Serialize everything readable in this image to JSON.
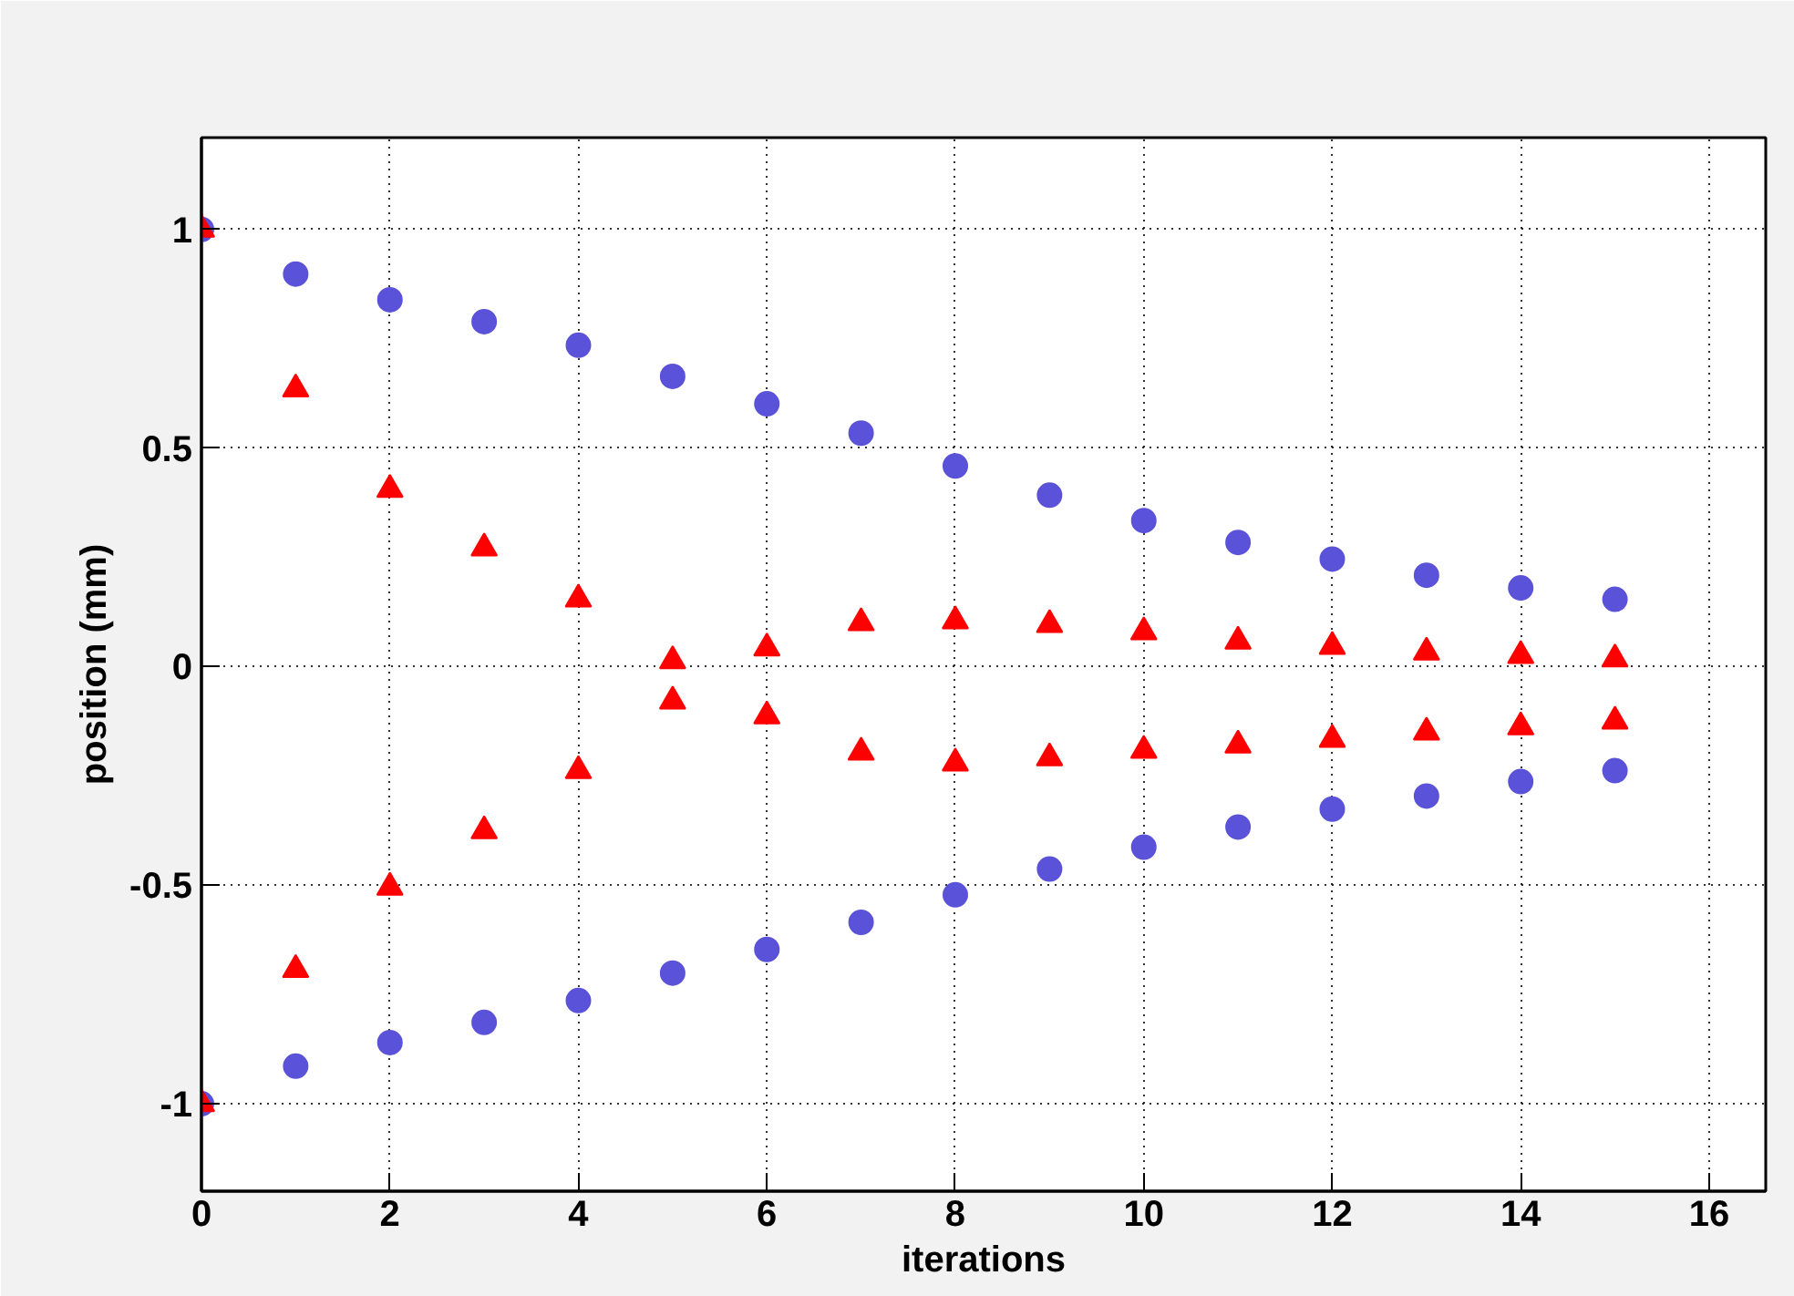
{
  "chart_data": {
    "type": "scatter",
    "xlabel": "iterations",
    "ylabel": "position (mm)",
    "xlim": [
      0,
      16.6
    ],
    "ylim": [
      -1.2,
      1.21
    ],
    "xticks": [
      0,
      2,
      4,
      6,
      8,
      10,
      12,
      14,
      16
    ],
    "yticks": [
      {
        "value": -1,
        "label": "-1"
      },
      {
        "value": -0.5,
        "label": "-0.5"
      },
      {
        "value": 0,
        "label": "0"
      },
      {
        "value": 0.5,
        "label": "0.5"
      },
      {
        "value": 1,
        "label": "1"
      }
    ],
    "grid": true,
    "x": [
      0,
      1,
      2,
      3,
      4,
      5,
      6,
      7,
      8,
      9,
      10,
      11,
      12,
      13,
      14,
      15
    ],
    "series": [
      {
        "color": "#5a52d8",
        "marker": "circle",
        "values": [
          1.0,
          0.898,
          0.839,
          0.789,
          0.735,
          0.664,
          0.601,
          0.534,
          0.459,
          0.392,
          0.334,
          0.284,
          0.246,
          0.209,
          0.18,
          0.154
        ]
      },
      {
        "color": "#5a52d8",
        "marker": "circle",
        "values": [
          -1.0,
          -0.914,
          -0.86,
          -0.814,
          -0.764,
          -0.701,
          -0.647,
          -0.585,
          -0.522,
          -0.463,
          -0.413,
          -0.367,
          -0.326,
          -0.296,
          -0.263,
          -0.238
        ]
      },
      {
        "color": "#ff0000",
        "marker": "triangle",
        "values": [
          1.0,
          0.635,
          0.405,
          0.271,
          0.154,
          0.013,
          0.042,
          0.1,
          0.104,
          0.096,
          0.079,
          0.058,
          0.046,
          0.033,
          0.025,
          0.017
        ]
      },
      {
        "color": "#ff0000",
        "marker": "triangle",
        "values": [
          -1.0,
          -0.693,
          -0.505,
          -0.376,
          -0.238,
          -0.079,
          -0.113,
          -0.196,
          -0.221,
          -0.209,
          -0.192,
          -0.18,
          -0.167,
          -0.15,
          -0.138,
          -0.125
        ]
      }
    ]
  }
}
